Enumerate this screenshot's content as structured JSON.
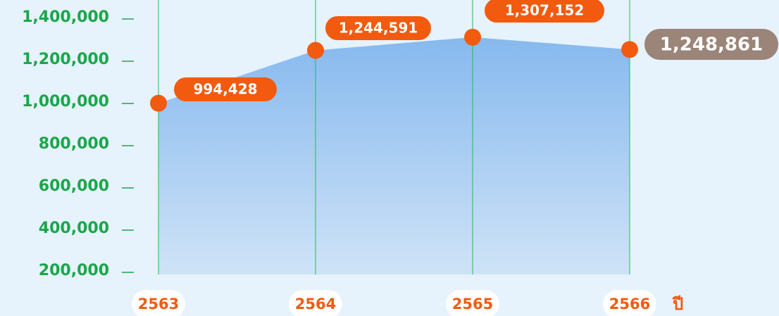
{
  "chart_data": {
    "type": "area",
    "categories": [
      "2563",
      "2564",
      "2565",
      "2566"
    ],
    "x_unit": "ปี",
    "values": [
      994428,
      1244591,
      1307152,
      1248861
    ],
    "value_labels": [
      "994,428",
      "1,244,591",
      "1,307,152",
      "1,248,861"
    ],
    "color": "#8fbff0",
    "ylim": [
      200000,
      1400000
    ],
    "yticks": [
      {
        "value": 200000,
        "label": "200,000"
      },
      {
        "value": 400000,
        "label": "400,000"
      },
      {
        "value": 600000,
        "label": "600,000"
      },
      {
        "value": 800000,
        "label": "800,000"
      },
      {
        "value": 1000000,
        "label": "1,000,000"
      },
      {
        "value": 1200000,
        "label": "1,200,000"
      },
      {
        "value": 1400000,
        "label": "1,400,000"
      }
    ],
    "grid": true
  }
}
